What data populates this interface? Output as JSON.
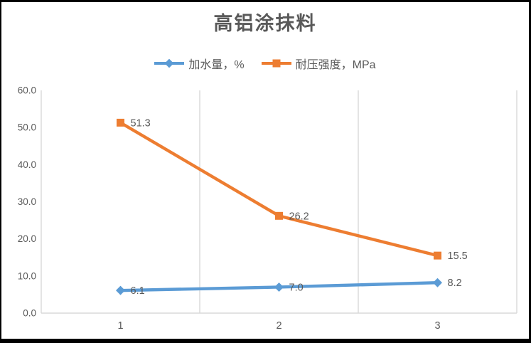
{
  "chart_data": {
    "type": "line",
    "title": "高铝涂抹料",
    "categories": [
      "1",
      "2",
      "3"
    ],
    "series": [
      {
        "name": "加水量，%",
        "values": [
          6.1,
          7.0,
          8.2
        ],
        "data_labels": [
          "6.1",
          "7.0",
          "8.2"
        ],
        "color": "#5B9BD5",
        "marker": "diamond"
      },
      {
        "name": "耐压强度，MPa",
        "values": [
          51.3,
          26.2,
          15.5
        ],
        "data_labels": [
          "51.3",
          "26.2",
          "15.5"
        ],
        "color": "#ED7D31",
        "marker": "square"
      }
    ],
    "xlabel": "",
    "ylabel": "",
    "ylim": [
      0,
      60
    ],
    "ytick_labels": [
      "0.0",
      "10.0",
      "20.0",
      "30.0",
      "40.0",
      "50.0",
      "60.0"
    ],
    "grid": "vertical category boundary gridlines only",
    "legend_position": "top",
    "data_label_position": "right of point"
  },
  "colors": {
    "gridline": "#D9D9D9",
    "axis_text": "#595959",
    "title_text": "#595959",
    "background": "#FFFFFF",
    "frame_border": "#000000"
  }
}
